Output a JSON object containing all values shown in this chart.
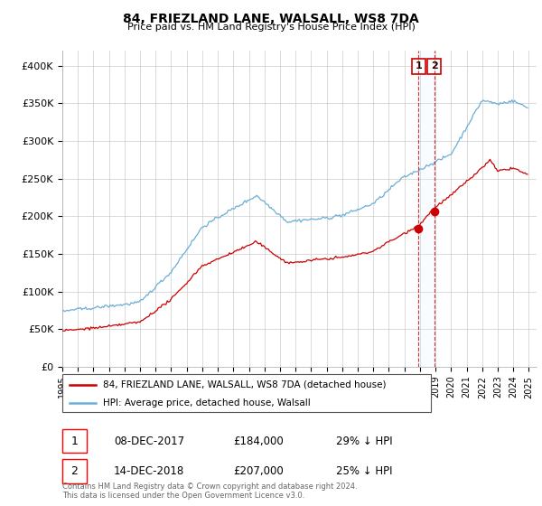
{
  "title": "84, FRIEZLAND LANE, WALSALL, WS8 7DA",
  "subtitle": "Price paid vs. HM Land Registry's House Price Index (HPI)",
  "legend_line1": "84, FRIEZLAND LANE, WALSALL, WS8 7DA (detached house)",
  "legend_line2": "HPI: Average price, detached house, Walsall",
  "transaction1_label": "1",
  "transaction1_date": "08-DEC-2017",
  "transaction1_price": "£184,000",
  "transaction1_hpi": "29% ↓ HPI",
  "transaction1_price_val": 184000,
  "transaction1_year": 2017,
  "transaction1_month": 12,
  "transaction2_label": "2",
  "transaction2_date": "14-DEC-2018",
  "transaction2_price": "£207,000",
  "transaction2_hpi": "25% ↓ HPI",
  "transaction2_price_val": 207000,
  "transaction2_year": 2018,
  "transaction2_month": 12,
  "footnote": "Contains HM Land Registry data © Crown copyright and database right 2024.\nThis data is licensed under the Open Government Licence v3.0.",
  "hpi_color": "#6baed6",
  "price_color": "#cc0000",
  "marker_color": "#cc0000",
  "vline_color": "#cc0000",
  "shade_color": "#ddeeff",
  "ylim": [
    0,
    420000
  ],
  "yticks": [
    0,
    50000,
    100000,
    150000,
    200000,
    250000,
    300000,
    350000,
    400000
  ],
  "ytick_labels": [
    "£0",
    "£50K",
    "£100K",
    "£150K",
    "£200K",
    "£250K",
    "£300K",
    "£350K",
    "£400K"
  ],
  "year_start": 1995,
  "year_end": 2025
}
